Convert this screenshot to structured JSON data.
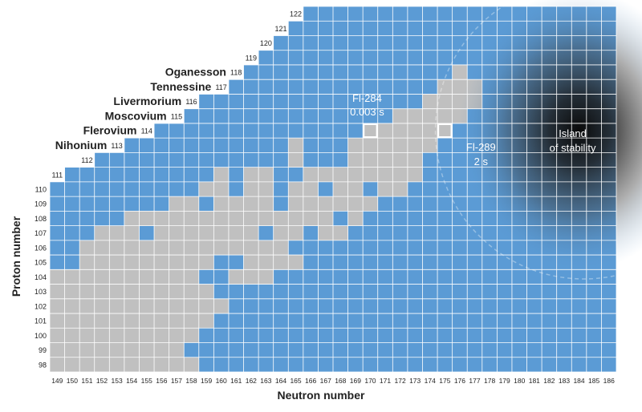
{
  "chart_data": {
    "type": "heatmap",
    "title": "",
    "xlabel": "Neutron number",
    "ylabel": "Proton number",
    "x_range": [
      149,
      186
    ],
    "y_range": [
      98,
      122
    ],
    "colors": {
      "unknown": "#5b9bd5",
      "known": "#c0c0c0",
      "label_box": "#ffffff",
      "highlight": "#ffffff",
      "gridline": "#ffffff",
      "island": "#1a1a1a",
      "axis_text": "#222222"
    },
    "rows": [
      {
        "z": 98,
        "first_n": 149,
        "last_n": 186,
        "known_cells": [
          [
            149,
            158
          ]
        ]
      },
      {
        "z": 99,
        "first_n": 149,
        "last_n": 186,
        "known_cells": [
          [
            149,
            157
          ]
        ]
      },
      {
        "z": 100,
        "first_n": 149,
        "last_n": 186,
        "known_cells": [
          [
            149,
            158
          ]
        ]
      },
      {
        "z": 101,
        "first_n": 149,
        "last_n": 186,
        "known_cells": [
          [
            149,
            159
          ]
        ]
      },
      {
        "z": 102,
        "first_n": 149,
        "last_n": 186,
        "known_cells": [
          [
            149,
            159
          ],
          [
            160,
            160
          ]
        ]
      },
      {
        "z": 103,
        "first_n": 149,
        "last_n": 186,
        "known_cells": [
          [
            149,
            159
          ]
        ]
      },
      {
        "z": 104,
        "first_n": 149,
        "last_n": 186,
        "known_cells": [
          [
            149,
            158
          ],
          [
            161,
            163
          ]
        ]
      },
      {
        "z": 105,
        "first_n": 149,
        "last_n": 186,
        "known_cells": [
          [
            151,
            159
          ],
          [
            162,
            165
          ]
        ]
      },
      {
        "z": 106,
        "first_n": 149,
        "last_n": 186,
        "known_cells": [
          [
            151,
            158
          ],
          [
            159,
            164
          ]
        ]
      },
      {
        "z": 107,
        "first_n": 149,
        "last_n": 186,
        "known_cells": [
          [
            152,
            154
          ],
          [
            156,
            162
          ],
          [
            164,
            165
          ],
          [
            167,
            168
          ]
        ]
      },
      {
        "z": 108,
        "first_n": 149,
        "last_n": 186,
        "known_cells": [
          [
            154,
            162
          ],
          [
            163,
            164
          ],
          [
            165,
            167
          ],
          [
            169,
            169
          ]
        ]
      },
      {
        "z": 109,
        "first_n": 149,
        "last_n": 186,
        "known_cells": [
          [
            157,
            158
          ],
          [
            160,
            161
          ],
          [
            162,
            163
          ],
          [
            165,
            170
          ]
        ]
      },
      {
        "z": 110,
        "first_n": 149,
        "last_n": 186,
        "known_cells": [
          [
            159,
            160
          ],
          [
            162,
            163
          ],
          [
            165,
            166
          ],
          [
            168,
            169
          ],
          [
            171,
            172
          ]
        ]
      },
      {
        "z": 111,
        "first_n": 150,
        "last_n": 186,
        "known_cells": [
          [
            160,
            160
          ],
          [
            162,
            163
          ],
          [
            166,
            173
          ]
        ]
      },
      {
        "z": 112,
        "first_n": 152,
        "last_n": 186,
        "known_cells": [
          [
            165,
            165
          ],
          [
            169,
            173
          ]
        ]
      },
      {
        "z": 113,
        "first_n": 154,
        "last_n": 186,
        "known_cells": [
          [
            165,
            165
          ],
          [
            169,
            174
          ]
        ]
      },
      {
        "z": 114,
        "first_n": 156,
        "last_n": 186,
        "known_cells": [
          [
            170,
            175
          ]
        ]
      },
      {
        "z": 115,
        "first_n": 158,
        "last_n": 186,
        "known_cells": [
          [
            172,
            176
          ]
        ]
      },
      {
        "z": 116,
        "first_n": 159,
        "last_n": 186,
        "known_cells": [
          [
            174,
            177
          ]
        ]
      },
      {
        "z": 117,
        "first_n": 161,
        "last_n": 186,
        "known_cells": [
          [
            175,
            177
          ]
        ]
      },
      {
        "z": 118,
        "first_n": 162,
        "last_n": 186,
        "known_cells": [
          [
            176,
            176
          ]
        ]
      },
      {
        "z": 119,
        "first_n": 163,
        "last_n": 186,
        "known_cells": []
      },
      {
        "z": 120,
        "first_n": 164,
        "last_n": 186,
        "known_cells": []
      },
      {
        "z": 121,
        "first_n": 165,
        "last_n": 186,
        "known_cells": []
      },
      {
        "z": 122,
        "first_n": 166,
        "last_n": 186,
        "known_cells": []
      }
    ],
    "element_labels": [
      {
        "z": 113,
        "name": "Nihonium"
      },
      {
        "z": 114,
        "name": "Flerovium"
      },
      {
        "z": 115,
        "name": "Moscovium"
      },
      {
        "z": 116,
        "name": "Livermorium"
      },
      {
        "z": 117,
        "name": "Tennessine"
      },
      {
        "z": 118,
        "name": "Oganesson"
      }
    ],
    "highlighted_isotopes": [
      {
        "z": 114,
        "n": 170,
        "name": "Fl-284",
        "half_life": "0.003 s"
      },
      {
        "z": 114,
        "n": 175,
        "name": "Fl-289",
        "half_life": "2 s"
      }
    ],
    "island": {
      "label_line1": "Island",
      "label_line2": "of stability",
      "center_n": 184,
      "center_z": 114
    }
  }
}
